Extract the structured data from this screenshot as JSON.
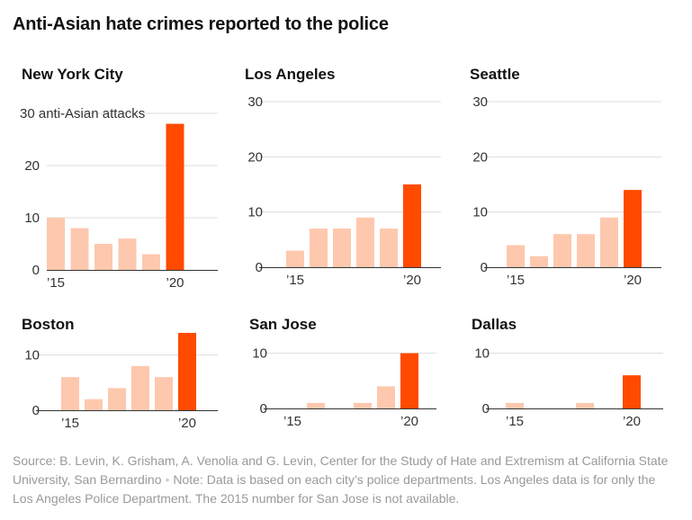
{
  "title": "Anti-Asian hate crimes reported to the police",
  "colors": {
    "past": "#fdc8ae",
    "latest": "#ff4a00",
    "grid": "#dddddd",
    "axis": "#333333",
    "source": "#999999"
  },
  "source": {
    "text": "Source: B. Levin, K. Grisham, A. Venolia and G. Levin, Center for the Study of Hate and Extremism at California State University, San Bernardino",
    "separator": "•",
    "note": "Note: Data is based on each city’s police departments. Los Angeles data is for only the Los Angeles Police Department. The 2015 number for San Jose is not available."
  },
  "chart_data": [
    {
      "type": "bar",
      "title": "New York City",
      "categories": [
        "2015",
        "2016",
        "2017",
        "2018",
        "2019",
        "2020"
      ],
      "values": [
        10,
        8,
        5,
        6,
        3,
        28
      ],
      "yticks": [
        0,
        10,
        20,
        30
      ],
      "ytick_labels": [
        "0",
        "10",
        "20",
        ""
      ],
      "unit_label": "30 anti-Asian attacks",
      "xtick_labels": [
        "’15",
        "’20"
      ],
      "ylim": [
        0,
        30
      ]
    },
    {
      "type": "bar",
      "title": "Los Angeles",
      "categories": [
        "2015",
        "2016",
        "2017",
        "2018",
        "2019",
        "2020"
      ],
      "values": [
        3,
        7,
        7,
        9,
        7,
        15
      ],
      "yticks": [
        0,
        10,
        20,
        30
      ],
      "ytick_labels": [
        "0",
        "10",
        "20",
        "30"
      ],
      "xtick_labels": [
        "’15",
        "’20"
      ],
      "ylim": [
        0,
        30
      ]
    },
    {
      "type": "bar",
      "title": "Seattle",
      "categories": [
        "2015",
        "2016",
        "2017",
        "2018",
        "2019",
        "2020"
      ],
      "values": [
        4,
        2,
        6,
        6,
        9,
        14
      ],
      "yticks": [
        0,
        10,
        20,
        30
      ],
      "ytick_labels": [
        "0",
        "10",
        "20",
        "30"
      ],
      "xtick_labels": [
        "’15",
        "’20"
      ],
      "ylim": [
        0,
        30
      ]
    },
    {
      "type": "bar",
      "title": "Boston",
      "categories": [
        "2015",
        "2016",
        "2017",
        "2018",
        "2019",
        "2020"
      ],
      "values": [
        6,
        2,
        4,
        8,
        6,
        14
      ],
      "yticks": [
        0,
        10
      ],
      "ytick_labels": [
        "0",
        "10"
      ],
      "xtick_labels": [
        "’15",
        "’20"
      ],
      "ylim": [
        0,
        14
      ]
    },
    {
      "type": "bar",
      "title": "San Jose",
      "categories": [
        "2015",
        "2016",
        "2017",
        "2018",
        "2019",
        "2020"
      ],
      "values": [
        null,
        1,
        0,
        1,
        4,
        10
      ],
      "yticks": [
        0,
        10
      ],
      "ytick_labels": [
        "0",
        "10"
      ],
      "xtick_labels": [
        "’15",
        "’20"
      ],
      "ylim": [
        0,
        14
      ]
    },
    {
      "type": "bar",
      "title": "Dallas",
      "categories": [
        "2015",
        "2016",
        "2017",
        "2018",
        "2019",
        "2020"
      ],
      "values": [
        1,
        0,
        0,
        1,
        0,
        6
      ],
      "yticks": [
        0,
        10
      ],
      "ytick_labels": [
        "0",
        "10"
      ],
      "xtick_labels": [
        "’15",
        "’20"
      ],
      "ylim": [
        0,
        14
      ]
    }
  ]
}
